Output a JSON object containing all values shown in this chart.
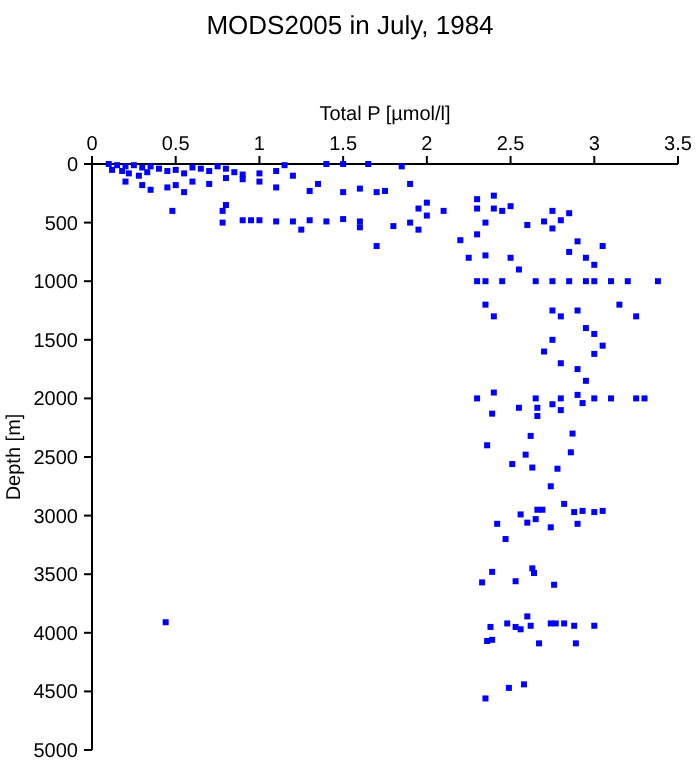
{
  "chart_data": {
    "type": "scatter",
    "title": "MODS2005 in July, 1984",
    "xlabel": "Total P [µmol/l]",
    "ylabel": "Depth [m]",
    "xlim": [
      0,
      3.5
    ],
    "xticks": [
      0,
      0.5,
      1,
      1.5,
      2,
      2.5,
      3,
      3.5
    ],
    "ylim": [
      5000,
      0
    ],
    "yticks": [
      0,
      500,
      1000,
      1500,
      2000,
      2500,
      3000,
      3500,
      4000,
      4500,
      5000
    ],
    "marker": "square",
    "grid": false,
    "series": [
      {
        "color": "#0000ff",
        "x": [
          0.1,
          0.15,
          0.2,
          0.25,
          0.3,
          0.35,
          0.4,
          0.12,
          0.18,
          0.22,
          0.28,
          0.33,
          0.45,
          0.5,
          0.55,
          0.6,
          0.65,
          0.7,
          0.75,
          0.8,
          0.85,
          0.9,
          1.0,
          1.1,
          1.2,
          0.2,
          0.3,
          0.35,
          0.45,
          0.5,
          0.55,
          0.6,
          0.7,
          0.8,
          0.9,
          1.0,
          1.1,
          1.15,
          1.4,
          1.5,
          1.65,
          1.85,
          1.3,
          1.35,
          1.5,
          1.6,
          1.7,
          1.75,
          1.9,
          0.48,
          0.8,
          0.78,
          0.9,
          0.95,
          0.78,
          1.0,
          1.1,
          1.2,
          1.3,
          1.25,
          1.4,
          1.5,
          1.6,
          1.6,
          1.7,
          1.8,
          1.9,
          1.95,
          1.95,
          2.0,
          2.1,
          2.0,
          2.2,
          2.25,
          2.3,
          2.3,
          2.35,
          2.4,
          2.4,
          2.45,
          2.5,
          2.3,
          2.35,
          2.5,
          2.55,
          2.6,
          2.7,
          2.75,
          2.75,
          2.8,
          2.85,
          2.9,
          2.85,
          2.95,
          3.0,
          3.05,
          2.3,
          2.35,
          2.45,
          2.65,
          2.75,
          2.85,
          2.95,
          3.0,
          3.1,
          3.2,
          3.38,
          2.35,
          2.4,
          2.75,
          2.8,
          2.9,
          3.15,
          3.25,
          2.75,
          2.95,
          3.0,
          3.05,
          2.7,
          2.8,
          2.9,
          2.95,
          3.0,
          2.3,
          2.4,
          2.65,
          2.75,
          2.8,
          2.9,
          3.0,
          3.1,
          3.25,
          3.3,
          2.39,
          2.55,
          2.66,
          2.66,
          2.8,
          2.93,
          2.36,
          2.62,
          2.59,
          2.87,
          2.86,
          2.51,
          2.63,
          2.78,
          2.74,
          2.82,
          2.56,
          2.66,
          2.69,
          2.88,
          2.93,
          3.0,
          3.05,
          2.42,
          2.6,
          2.65,
          2.74,
          2.9,
          2.47,
          2.39,
          2.33,
          2.53,
          2.63,
          2.64,
          2.76,
          0.44,
          2.36,
          2.39,
          2.38,
          2.48,
          2.53,
          2.56,
          2.6,
          2.62,
          2.67,
          2.74,
          2.77,
          2.82,
          2.88,
          2.89,
          3.0,
          2.49,
          2.58,
          2.35
        ],
        "values": [
          0,
          10,
          20,
          10,
          30,
          20,
          40,
          50,
          60,
          80,
          100,
          70,
          60,
          50,
          80,
          30,
          40,
          60,
          20,
          40,
          70,
          90,
          80,
          60,
          100,
          150,
          180,
          220,
          200,
          180,
          240,
          150,
          170,
          120,
          130,
          150,
          200,
          10,
          0,
          0,
          0,
          20,
          230,
          170,
          240,
          210,
          240,
          230,
          170,
          400,
          350,
          400,
          480,
          480,
          500,
          480,
          490,
          490,
          480,
          560,
          490,
          470,
          540,
          490,
          700,
          530,
          500,
          560,
          380,
          330,
          400,
          440,
          650,
          800,
          300,
          380,
          500,
          380,
          270,
          400,
          360,
          600,
          780,
          800,
          900,
          520,
          490,
          550,
          400,
          480,
          420,
          660,
          750,
          800,
          860,
          700,
          1000,
          1000,
          1000,
          1000,
          1000,
          1000,
          1000,
          1000,
          1000,
          1000,
          1000,
          1200,
          1300,
          1250,
          1300,
          1250,
          1200,
          1300,
          1500,
          1400,
          1450,
          1550,
          1600,
          1700,
          1750,
          1850,
          1620,
          2000,
          1950,
          2000,
          2050,
          2000,
          1970,
          2000,
          2000,
          2000,
          2000,
          2130,
          2080,
          2080,
          2150,
          2100,
          2040,
          2400,
          2320,
          2480,
          2300,
          2460,
          2560,
          2590,
          2600,
          2750,
          2900,
          2990,
          2950,
          2950,
          2970,
          2960,
          2970,
          2960,
          3070,
          3060,
          3030,
          3100,
          3070,
          3200,
          3480,
          3570,
          3560,
          3450,
          3490,
          3590,
          3910,
          4070,
          4060,
          3950,
          3920,
          3950,
          3970,
          3860,
          3940,
          4090,
          3920,
          3920,
          3920,
          3940,
          4090,
          3940,
          4470,
          4440,
          4560
        ]
      }
    ]
  }
}
